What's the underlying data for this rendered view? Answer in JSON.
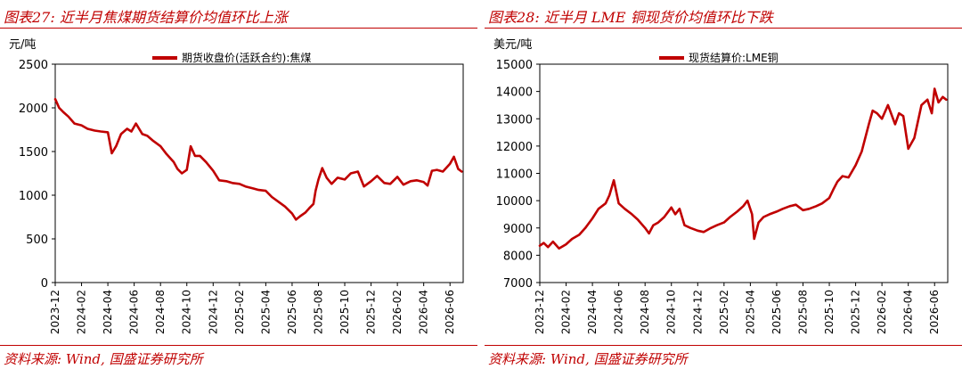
{
  "left": {
    "figure_title": "图表27:  近半月焦煤期货结算价均值环比上涨",
    "source": "资料来源:  Wind,  国盛证券研究所"
  },
  "right": {
    "figure_title": "图表28:  近半月 LME 铜现货价均值环比下跌",
    "source": "资料来源:  Wind,  国盛证券研究所"
  },
  "colors": {
    "accent": "#c00000",
    "series": "#c00000",
    "axis": "#000000"
  },
  "chart_data": [
    {
      "type": "line",
      "unit_label": "元/吨",
      "ylim": [
        0,
        2500
      ],
      "yticks": [
        0,
        500,
        1000,
        1500,
        2000,
        2500
      ],
      "xlim": [
        "2023-12",
        "2026-07"
      ],
      "xticks": [
        "2023-12",
        "2024-02",
        "2024-04",
        "2024-06",
        "2024-08",
        "2024-10",
        "2024-12",
        "2025-02",
        "2025-04",
        "2025-06",
        "2025-08",
        "2025-10",
        "2025-12",
        "2026-02",
        "2026-04",
        "2026-06"
      ],
      "legend": "top-center",
      "grid": false,
      "series": [
        {
          "name": "期货收盘价(活跃合约):焦煤",
          "x": [
            "2023-12-01",
            "2023-12-10",
            "2023-12-20",
            "2024-01-01",
            "2024-01-15",
            "2024-02-01",
            "2024-02-15",
            "2024-03-01",
            "2024-03-15",
            "2024-04-01",
            "2024-04-10",
            "2024-04-20",
            "2024-05-01",
            "2024-05-15",
            "2024-05-25",
            "2024-06-05",
            "2024-06-20",
            "2024-07-01",
            "2024-07-15",
            "2024-08-01",
            "2024-08-15",
            "2024-09-01",
            "2024-09-10",
            "2024-09-20",
            "2024-10-01",
            "2024-10-10",
            "2024-10-20",
            "2024-11-01",
            "2024-11-15",
            "2024-12-01",
            "2024-12-15",
            "2025-01-01",
            "2025-01-15",
            "2025-02-01",
            "2025-02-15",
            "2025-03-01",
            "2025-03-15",
            "2025-04-01",
            "2025-04-15",
            "2025-05-01",
            "2025-05-15",
            "2025-06-01",
            "2025-06-10",
            "2025-06-20",
            "2025-07-01",
            "2025-07-10",
            "2025-07-20",
            "2025-07-25",
            "2025-08-01",
            "2025-08-10",
            "2025-08-20",
            "2025-09-01",
            "2025-09-15",
            "2025-10-01",
            "2025-10-15",
            "2025-11-01",
            "2025-11-15",
            "2025-12-01",
            "2025-12-15",
            "2026-01-01",
            "2026-01-15",
            "2026-02-01",
            "2026-02-15",
            "2026-03-01",
            "2026-03-15",
            "2026-04-01",
            "2026-04-10",
            "2026-04-20",
            "2026-05-01",
            "2026-05-15",
            "2026-06-01",
            "2026-06-10",
            "2026-06-20",
            "2026-06-28"
          ],
          "values": [
            2100,
            2000,
            1950,
            1900,
            1820,
            1800,
            1760,
            1740,
            1730,
            1720,
            1480,
            1560,
            1700,
            1760,
            1730,
            1820,
            1700,
            1680,
            1620,
            1560,
            1470,
            1380,
            1300,
            1250,
            1290,
            1560,
            1450,
            1450,
            1380,
            1280,
            1170,
            1160,
            1140,
            1130,
            1100,
            1080,
            1060,
            1050,
            980,
            920,
            870,
            790,
            720,
            760,
            800,
            850,
            900,
            1050,
            1180,
            1310,
            1200,
            1130,
            1200,
            1180,
            1250,
            1270,
            1100,
            1160,
            1220,
            1140,
            1130,
            1210,
            1120,
            1160,
            1170,
            1150,
            1110,
            1280,
            1290,
            1270,
            1360,
            1440,
            1300,
            1270
          ]
        }
      ]
    },
    {
      "type": "line",
      "unit_label": "美元/吨",
      "ylim": [
        7000,
        15000
      ],
      "yticks": [
        7000,
        8000,
        9000,
        10000,
        11000,
        12000,
        13000,
        14000,
        15000
      ],
      "xlim": [
        "2023-12",
        "2026-07"
      ],
      "xticks": [
        "2023-12",
        "2024-02",
        "2024-04",
        "2024-06",
        "2024-08",
        "2024-10",
        "2024-12",
        "2025-02",
        "2025-04",
        "2025-06",
        "2025-08",
        "2025-10",
        "2025-12",
        "2026-02",
        "2026-04",
        "2026-06"
      ],
      "legend": "top-center",
      "grid": false,
      "series": [
        {
          "name": "现货结算价:LME铜",
          "x": [
            "2023-12-01",
            "2023-12-10",
            "2023-12-20",
            "2024-01-01",
            "2024-01-15",
            "2024-02-01",
            "2024-02-15",
            "2024-03-01",
            "2024-03-15",
            "2024-04-01",
            "2024-04-15",
            "2024-05-01",
            "2024-05-10",
            "2024-05-20",
            "2024-06-01",
            "2024-06-15",
            "2024-07-01",
            "2024-07-15",
            "2024-08-01",
            "2024-08-10",
            "2024-08-20",
            "2024-09-01",
            "2024-09-15",
            "2024-10-01",
            "2024-10-10",
            "2024-10-20",
            "2024-11-01",
            "2024-11-15",
            "2024-12-01",
            "2024-12-15",
            "2025-01-01",
            "2025-01-15",
            "2025-02-01",
            "2025-02-15",
            "2025-03-01",
            "2025-03-15",
            "2025-03-25",
            "2025-04-05",
            "2025-04-10",
            "2025-04-20",
            "2025-05-01",
            "2025-05-15",
            "2025-06-01",
            "2025-06-15",
            "2025-07-01",
            "2025-07-15",
            "2025-08-01",
            "2025-08-15",
            "2025-09-01",
            "2025-09-15",
            "2025-10-01",
            "2025-10-10",
            "2025-10-20",
            "2025-11-01",
            "2025-11-15",
            "2025-12-01",
            "2025-12-15",
            "2026-01-01",
            "2026-01-10",
            "2026-01-20",
            "2026-02-01",
            "2026-02-15",
            "2026-03-01",
            "2026-03-10",
            "2026-03-20",
            "2026-04-01",
            "2026-04-15",
            "2026-05-01",
            "2026-05-15",
            "2026-05-25",
            "2026-06-01",
            "2026-06-10",
            "2026-06-20",
            "2026-06-28"
          ],
          "values": [
            8350,
            8450,
            8300,
            8500,
            8250,
            8400,
            8600,
            8750,
            9000,
            9350,
            9700,
            9900,
            10200,
            10750,
            9900,
            9700,
            9500,
            9300,
            9000,
            8800,
            9100,
            9200,
            9400,
            9750,
            9500,
            9700,
            9100,
            9000,
            8900,
            8850,
            9000,
            9100,
            9200,
            9400,
            9600,
            9800,
            10000,
            9500,
            8600,
            9200,
            9400,
            9500,
            9600,
            9700,
            9800,
            9850,
            9650,
            9700,
            9800,
            9900,
            10100,
            10400,
            10700,
            10900,
            10850,
            11300,
            11800,
            12800,
            13300,
            13200,
            13000,
            13500,
            12800,
            13200,
            13100,
            11900,
            12300,
            13500,
            13700,
            13200,
            14100,
            13600,
            13800,
            13700
          ]
        }
      ]
    }
  ]
}
